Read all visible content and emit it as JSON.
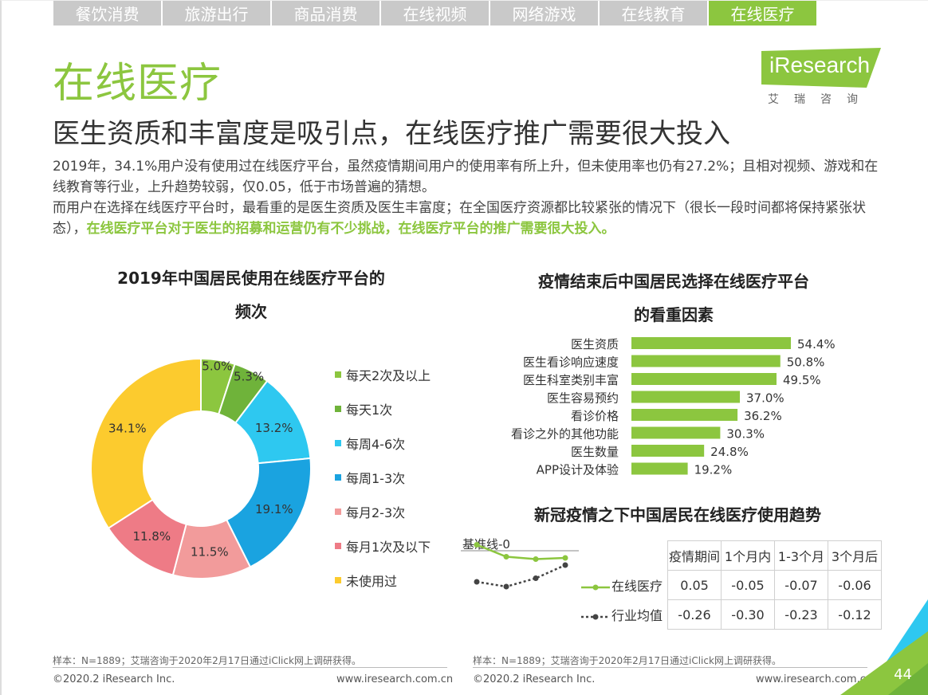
{
  "tabs": [
    "餐饮消费",
    "旅游出行",
    "商品消费",
    "在线视频",
    "网络游戏",
    "在线教育",
    "在线医疗"
  ],
  "active_tab": 6,
  "title": "在线医疗",
  "subtitle": "医生资质和丰富度是吸引点，在线医疗推广需要很大投入",
  "logo": {
    "text": "iResearch",
    "sub": "艾瑞咨询"
  },
  "desc": {
    "line1": "2019年，34.1%用户没有使用过在线医疗平台，虽然疫情期间用户的使用率有所上升，但未使用率也仍有27.2%；且相对视频、游戏和在线教育等行业，上升趋势较弱，仅0.05，低于市场普遍的猜想。",
    "line2a": "而用户在选择在线医疗平台时，最看重的是医生资质及医生丰富度；在全国医疗资源都比较紧张的情况下（很长一段时间都将保持紧张状态），",
    "line2b": "在线医疗平台对于医生的招募和运营仍有不少挑战，在线医疗平台的推广需要很大投入。"
  },
  "donut": {
    "title1": "2019年中国居民使用在线医疗平台的",
    "title2": "频次"
  },
  "bars": {
    "title1": "疫情结束后中国居民选择在线医疗平台",
    "title2": "的看重因素"
  },
  "trend": {
    "title": "新冠疫情之下中国居民在线医疗使用趋势",
    "baseline": "基准线-0",
    "headers": [
      "疫情期间",
      "1个月内",
      "1-3个月",
      "3个月后"
    ],
    "rows": [
      {
        "label": "在线医疗",
        "values": [
          "0.05",
          "-0.05",
          "-0.07",
          "-0.06"
        ]
      },
      {
        "label": "行业均值",
        "values": [
          "-0.26",
          "-0.30",
          "-0.23",
          "-0.12"
        ]
      }
    ]
  },
  "footer": {
    "source_left": "样本：N=1889；艾瑞咨询于2020年2月17日通过iClick网上调研获得。",
    "source_right": "样本：N=1889；艾瑞咨询于2020年2月17日通过iClick网上调研获得。",
    "copyright_left": "©2020.2 iResearch Inc.",
    "url_left": "www.iresearch.com.cn",
    "copyright_right": "©2020.2 iResearch Inc.",
    "url_right": "www.iresearch.com.cn",
    "page": "44"
  },
  "colors": {
    "accent": "#8cc63f",
    "tab_inactive": "#c9c9c9"
  },
  "chart_data": [
    {
      "type": "pie",
      "title": "2019年中国居民使用在线医疗平台的频次",
      "categories": [
        "每天2次及以上",
        "每天1次",
        "每周4-6次",
        "每周1-3次",
        "每月2-3次",
        "每月1次及以下",
        "未使用过"
      ],
      "values": [
        5.0,
        5.3,
        13.2,
        19.1,
        11.5,
        11.8,
        34.1
      ],
      "labels": [
        "5.0%",
        "5.3%",
        "13.2%",
        "19.1%",
        "11.5%",
        "11.8%",
        "34.1%"
      ],
      "colors": [
        "#8cc63f",
        "#6fb33a",
        "#2ec8f0",
        "#1aa3e0",
        "#f29b9b",
        "#ee7b86",
        "#fccb2e"
      ],
      "legend": "right"
    },
    {
      "type": "bar",
      "orientation": "horizontal",
      "title": "疫情结束后中国居民选择在线医疗平台的看重因素",
      "categories": [
        "医生资质",
        "医生看诊响应速度",
        "医生科室类别丰富",
        "医生容易预约",
        "看诊价格",
        "看诊之外的其他功能",
        "医生数量",
        "APP设计及体验"
      ],
      "values": [
        54.4,
        50.8,
        49.5,
        37.0,
        36.2,
        30.3,
        24.8,
        19.2
      ],
      "labels": [
        "54.4%",
        "50.8%",
        "49.5%",
        "37.0%",
        "36.2%",
        "30.3%",
        "24.8%",
        "19.2%"
      ],
      "color": "#8cc63f"
    },
    {
      "type": "line",
      "title": "新冠疫情之下中国居民在线医疗使用趋势",
      "categories": [
        "疫情期间",
        "1个月内",
        "1-3个月",
        "3个月后"
      ],
      "series": [
        {
          "name": "在线医疗",
          "values": [
            0.05,
            -0.05,
            -0.07,
            -0.06
          ],
          "color": "#8cc63f"
        },
        {
          "name": "行业均值",
          "values": [
            -0.26,
            -0.3,
            -0.23,
            -0.12
          ],
          "color": "#444444"
        }
      ]
    }
  ]
}
